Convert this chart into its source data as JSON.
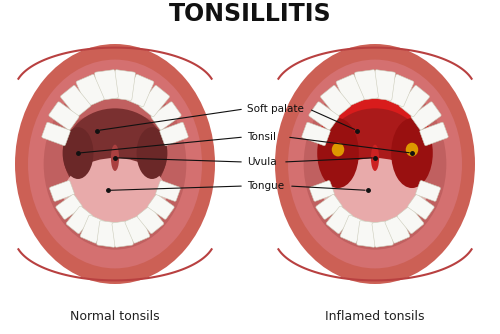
{
  "title": "TONSILLITIS",
  "title_fontsize": 17,
  "title_fontweight": "bold",
  "label_left": "Normal tonsils",
  "label_right": "Inflamed tonsils",
  "label_fontsize": 9,
  "bg_color": "#ffffff",
  "lip_outer_color": "#cc6055",
  "lip_rim_color": "#b84040",
  "mouth_bg_color": "#c06060",
  "throat_dark_normal": "#7a3030",
  "throat_dark_inflamed": "#aa1a1a",
  "soft_palate_normal": "#b05050",
  "soft_palate_inflamed": "#cc2020",
  "tonsil_normal": "#6b2828",
  "tonsil_inflamed": "#991010",
  "uvula_normal": "#aa4040",
  "uvula_inflamed": "#cc2222",
  "tongue_color": "#e8aaaa",
  "teeth_color": "#f8f8f5",
  "teeth_edge": "#ccccbb",
  "gum_color": "#c87070",
  "pus_color": "#dd9900",
  "inflamed_red": "#dd1111",
  "annotation_fontsize": 7.5,
  "annotation_color": "#111111",
  "line_color": "#111111"
}
